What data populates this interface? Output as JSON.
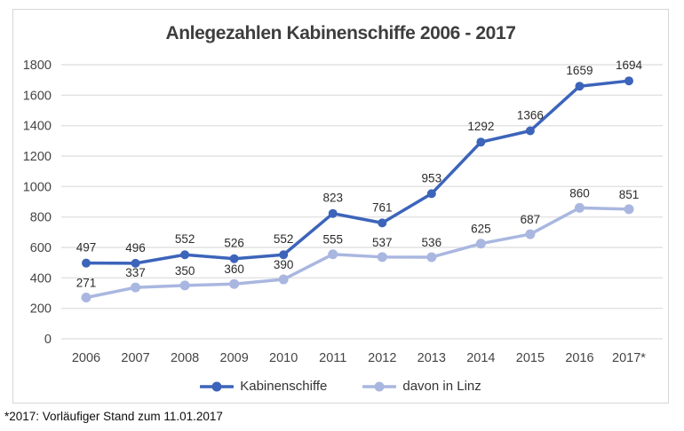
{
  "chart_data": {
    "type": "line",
    "title": "Anlegezahlen Kabinenschiffe 2006 - 2017",
    "categories": [
      "2006",
      "2007",
      "2008",
      "2009",
      "2010",
      "2011",
      "2012",
      "2013",
      "2014",
      "2015",
      "2016",
      "2017*"
    ],
    "series": [
      {
        "name": "Kabinenschiffe",
        "color": "#3c64ba",
        "marker_radius": 5,
        "values": [
          497,
          496,
          552,
          526,
          552,
          823,
          761,
          953,
          1292,
          1366,
          1659,
          1694
        ]
      },
      {
        "name": "davon in Linz",
        "color": "#a9b7e0",
        "marker_radius": 5.5,
        "values": [
          271,
          337,
          350,
          360,
          390,
          555,
          537,
          536,
          625,
          687,
          860,
          851
        ]
      }
    ],
    "xlabel": "",
    "ylabel": "",
    "ylim": [
      0,
      1800
    ],
    "ytick_step": 200,
    "grid": true,
    "legend_position": "bottom",
    "data_labels": true
  },
  "footnote": "*2017: Vorläufiger Stand zum 11.01.2017",
  "colors": {
    "gridline": "#e2e2e2",
    "card_border": "#d6d6d6",
    "title_text": "#3e3e3e",
    "axis_text": "#454545",
    "data_label_text": "#2b2b2b",
    "legend_text": "#333333"
  }
}
